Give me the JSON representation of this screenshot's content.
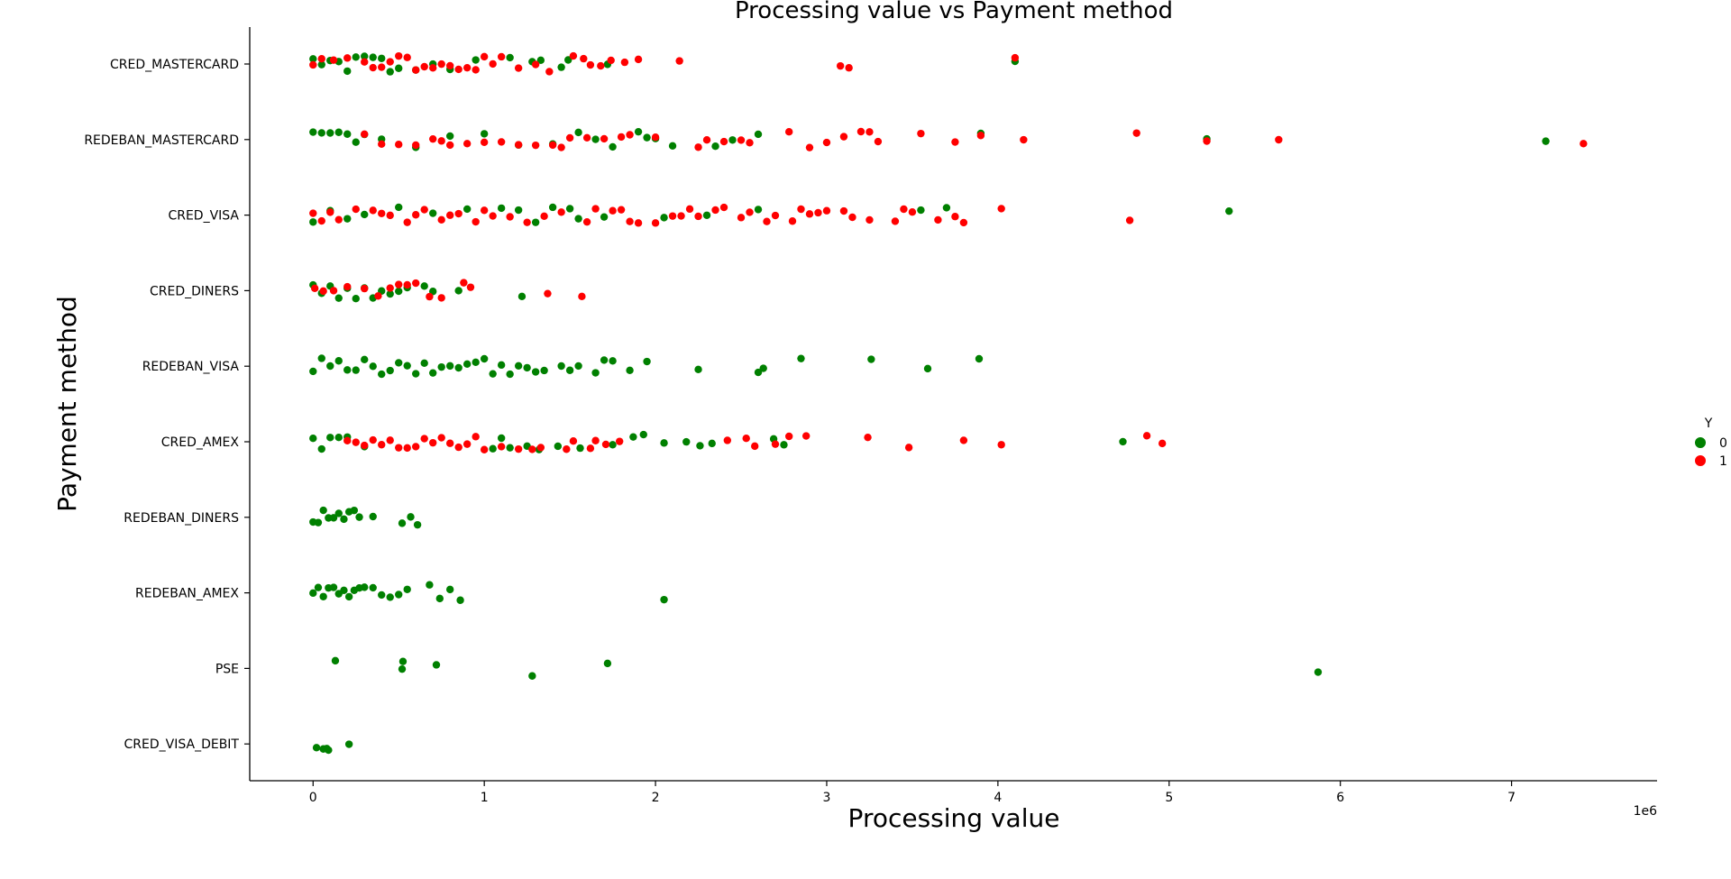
{
  "chart_data": {
    "type": "scatter",
    "subtype": "strip",
    "title": "Processing value vs Payment method",
    "xlabel": "Processing value",
    "ylabel": "Payment method",
    "x_offset_label": "1e6",
    "x_scale": 1000000,
    "xlim": [
      -370000,
      7850000
    ],
    "x_ticks": [
      0,
      1,
      2,
      3,
      4,
      5,
      6,
      7
    ],
    "categories": [
      "CRED_MASTERCARD",
      "REDEBAN_MASTERCARD",
      "CRED_VISA",
      "CRED_DINERS",
      "REDEBAN_VISA",
      "CRED_AMEX",
      "REDEBAN_DINERS",
      "REDEBAN_AMEX",
      "PSE",
      "CRED_VISA_DEBIT"
    ],
    "legend": {
      "title": "Y",
      "placement": "center-right",
      "entries": [
        {
          "label": "0",
          "color": "#008000"
        },
        {
          "label": "1",
          "color": "#ff0000"
        }
      ]
    },
    "series": [
      {
        "name": "0",
        "color": "#008000",
        "points": {
          "CRED_MASTERCARD": [
            0,
            50000,
            100000,
            150000,
            200000,
            250000,
            300000,
            350000,
            400000,
            450000,
            500000,
            600000,
            700000,
            800000,
            950000,
            1150000,
            1280000,
            1330000,
            1450000,
            1490000,
            1720000,
            4100000
          ],
          "REDEBAN_MASTERCARD": [
            0,
            50000,
            100000,
            150000,
            200000,
            250000,
            300000,
            400000,
            600000,
            800000,
            1000000,
            1200000,
            1400000,
            1550000,
            1650000,
            1750000,
            1900000,
            1950000,
            2000000,
            2100000,
            2350000,
            2450000,
            2600000,
            3900000,
            5220000,
            7200000
          ],
          "CRED_VISA": [
            0,
            100000,
            200000,
            300000,
            500000,
            700000,
            900000,
            1100000,
            1200000,
            1300000,
            1400000,
            1500000,
            1550000,
            1700000,
            2050000,
            2300000,
            2600000,
            3550000,
            3700000,
            5350000
          ],
          "CRED_DINERS": [
            0,
            50000,
            100000,
            150000,
            200000,
            250000,
            300000,
            350000,
            400000,
            450000,
            500000,
            550000,
            650000,
            700000,
            850000,
            1220000
          ],
          "REDEBAN_VISA": [
            0,
            50000,
            100000,
            150000,
            200000,
            250000,
            300000,
            350000,
            400000,
            450000,
            500000,
            550000,
            600000,
            650000,
            700000,
            750000,
            800000,
            850000,
            900000,
            950000,
            1000000,
            1050000,
            1100000,
            1150000,
            1200000,
            1250000,
            1300000,
            1350000,
            1450000,
            1500000,
            1550000,
            1650000,
            1700000,
            1750000,
            1850000,
            1950000,
            2250000,
            2600000,
            2630000,
            2850000,
            3260000,
            3590000,
            3890000
          ],
          "CRED_AMEX": [
            0,
            50000,
            100000,
            150000,
            200000,
            300000,
            1050000,
            1100000,
            1150000,
            1250000,
            1320000,
            1430000,
            1560000,
            1750000,
            1870000,
            1930000,
            2050000,
            2180000,
            2260000,
            2330000,
            2690000,
            2750000,
            4730000
          ],
          "REDEBAN_DINERS": [
            0,
            30000,
            60000,
            90000,
            120000,
            150000,
            180000,
            210000,
            240000,
            270000,
            350000,
            520000,
            570000,
            610000
          ],
          "REDEBAN_AMEX": [
            0,
            30000,
            60000,
            90000,
            120000,
            150000,
            180000,
            210000,
            240000,
            270000,
            300000,
            350000,
            400000,
            450000,
            500000,
            550000,
            680000,
            740000,
            800000,
            860000,
            2050000
          ],
          "PSE": [
            130000,
            520000,
            525000,
            720000,
            1280000,
            1720000,
            5870000
          ],
          "CRED_VISA_DEBIT": [
            20000,
            60000,
            80000,
            90000,
            210000
          ]
        }
      },
      {
        "name": "1",
        "color": "#ff0000",
        "points": {
          "CRED_MASTERCARD": [
            0,
            50000,
            120000,
            200000,
            300000,
            350000,
            400000,
            450000,
            500000,
            550000,
            600000,
            650000,
            700000,
            750000,
            800000,
            850000,
            900000,
            950000,
            1000000,
            1050000,
            1100000,
            1200000,
            1300000,
            1380000,
            1520000,
            1580000,
            1620000,
            1680000,
            1740000,
            1820000,
            1900000,
            2140000,
            3080000,
            3130000,
            4100000
          ],
          "REDEBAN_MASTERCARD": [
            300000,
            400000,
            500000,
            600000,
            700000,
            750000,
            800000,
            900000,
            1000000,
            1100000,
            1200000,
            1300000,
            1400000,
            1450000,
            1500000,
            1600000,
            1700000,
            1800000,
            1850000,
            2000000,
            2250000,
            2300000,
            2400000,
            2500000,
            2550000,
            2780000,
            2900000,
            3000000,
            3100000,
            3200000,
            3250000,
            3300000,
            3550000,
            3750000,
            3900000,
            4150000,
            4810000,
            5220000,
            5640000,
            7420000
          ],
          "CRED_VISA": [
            0,
            50000,
            100000,
            150000,
            250000,
            350000,
            400000,
            450000,
            550000,
            600000,
            650000,
            750000,
            800000,
            850000,
            950000,
            1000000,
            1050000,
            1150000,
            1250000,
            1350000,
            1450000,
            1600000,
            1650000,
            1750000,
            1800000,
            1850000,
            1900000,
            2000000,
            2100000,
            2150000,
            2200000,
            2250000,
            2350000,
            2400000,
            2500000,
            2550000,
            2650000,
            2700000,
            2800000,
            2850000,
            2900000,
            2950000,
            3000000,
            3100000,
            3150000,
            3250000,
            3400000,
            3450000,
            3500000,
            3650000,
            3750000,
            3800000,
            4020000,
            4770000
          ],
          "CRED_DINERS": [
            10000,
            60000,
            120000,
            200000,
            300000,
            380000,
            450000,
            500000,
            550000,
            600000,
            680000,
            750000,
            880000,
            920000,
            1370000,
            1570000
          ],
          "REDEBAN_VISA": [],
          "CRED_AMEX": [
            200000,
            250000,
            300000,
            350000,
            400000,
            450000,
            500000,
            550000,
            600000,
            650000,
            700000,
            750000,
            800000,
            850000,
            900000,
            950000,
            1000000,
            1100000,
            1200000,
            1280000,
            1330000,
            1480000,
            1520000,
            1620000,
            1650000,
            1710000,
            1790000,
            2420000,
            2530000,
            2580000,
            2700000,
            2780000,
            2880000,
            3240000,
            3480000,
            3800000,
            4020000,
            4870000,
            4960000
          ]
        }
      }
    ]
  }
}
